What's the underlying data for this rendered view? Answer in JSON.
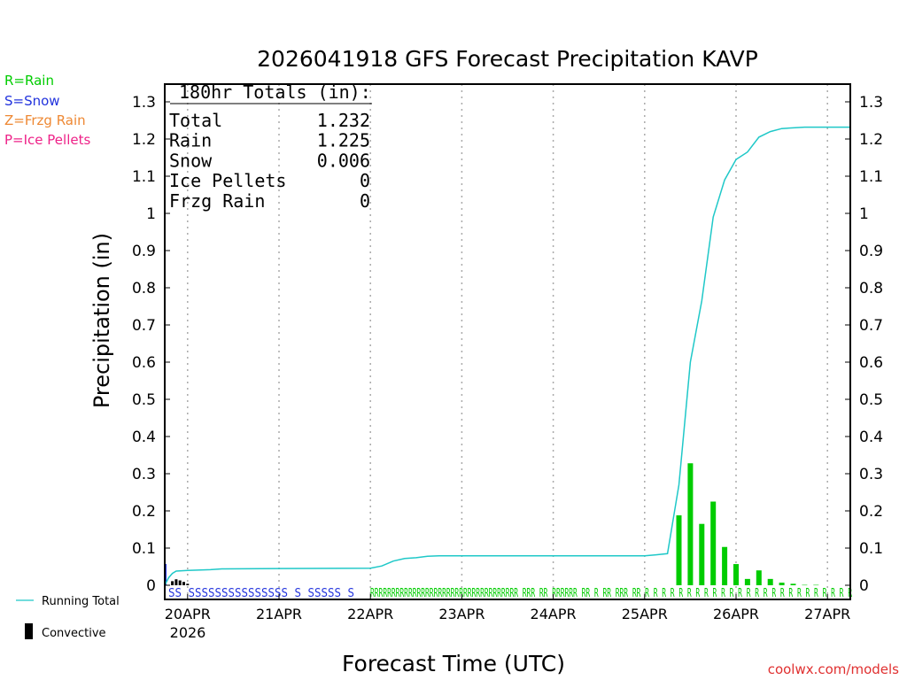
{
  "chart_data": {
    "type": "bar",
    "title": "2026041918 GFS Forecast Precipitation KAVP",
    "xlabel": "Forecast Time (UTC)",
    "ylabel": "Precipitation (in)",
    "ylim": [
      0,
      1.3
    ],
    "y_ticks": [
      "0",
      "0.1",
      "0.2",
      "0.3",
      "0.4",
      "0.5",
      "0.6",
      "0.7",
      "0.8",
      "0.9",
      "1",
      "1.1",
      "1.2",
      "1.3"
    ],
    "x_range_hours": [
      0,
      180
    ],
    "date_ticks": [
      {
        "label": "20APR",
        "hour": 6
      },
      {
        "label": "21APR",
        "hour": 30
      },
      {
        "label": "22APR",
        "hour": 54
      },
      {
        "label": "23APR",
        "hour": 78
      },
      {
        "label": "24APR",
        "hour": 102
      },
      {
        "label": "25APR",
        "hour": 126
      },
      {
        "label": "26APR",
        "hour": 150
      },
      {
        "label": "27APR",
        "hour": 174
      }
    ],
    "year_label": "2026",
    "legend": {
      "rain": "R=Rain",
      "snow": "S=Snow",
      "frzg_rain": "Z=Frzg Rain",
      "ice_pellets": "P=Ice Pellets",
      "running_total": "Running Total",
      "convective": "Convective"
    },
    "totals": {
      "header": "180hr Totals (in):",
      "rows": [
        {
          "label": "Total",
          "value": "1.232"
        },
        {
          "label": "Rain",
          "value": "1.225"
        },
        {
          "label": "Snow",
          "value": "0.006"
        },
        {
          "label": "Ice Pellets",
          "value": "0"
        },
        {
          "label": "Frzg Rain",
          "value": "0"
        }
      ]
    },
    "series": [
      {
        "name": "Running Total",
        "points": [
          [
            0,
            0
          ],
          [
            1,
            0.02
          ],
          [
            2,
            0.032
          ],
          [
            3,
            0.038
          ],
          [
            6,
            0.04
          ],
          [
            12,
            0.042
          ],
          [
            15,
            0.044
          ],
          [
            30,
            0.045
          ],
          [
            54,
            0.046
          ],
          [
            57,
            0.052
          ],
          [
            60,
            0.065
          ],
          [
            63,
            0.072
          ],
          [
            66,
            0.074
          ],
          [
            69,
            0.078
          ],
          [
            72,
            0.079
          ],
          [
            126,
            0.079
          ],
          [
            129,
            0.082
          ],
          [
            132,
            0.085
          ],
          [
            135,
            0.27
          ],
          [
            138,
            0.6
          ],
          [
            141,
            0.765
          ],
          [
            144,
            0.99
          ],
          [
            147,
            1.09
          ],
          [
            150,
            1.145
          ],
          [
            153,
            1.165
          ],
          [
            156,
            1.205
          ],
          [
            159,
            1.22
          ],
          [
            162,
            1.228
          ],
          [
            168,
            1.232
          ],
          [
            180,
            1.232
          ]
        ]
      },
      {
        "name": "Rain (3hr)",
        "points": [
          [
            135,
            0.188
          ],
          [
            138,
            0.328
          ],
          [
            141,
            0.165
          ],
          [
            144,
            0.225
          ],
          [
            147,
            0.103
          ],
          [
            150,
            0.057
          ],
          [
            153,
            0.017
          ],
          [
            156,
            0.04
          ],
          [
            159,
            0.017
          ],
          [
            162,
            0.007
          ],
          [
            165,
            0.004
          ],
          [
            168,
            0.001
          ],
          [
            171,
            0.001
          ]
        ]
      },
      {
        "name": "Convective",
        "points": [
          [
            2,
            0.011
          ],
          [
            3,
            0.016
          ],
          [
            4,
            0.013
          ],
          [
            5,
            0.009
          ],
          [
            6,
            0.004
          ]
        ]
      }
    ],
    "ptype_strip": {
      "snow_text": "SS  SSSSSSSSSSSSSSS  S  SSSSS  S",
      "rain_text": "RRRRRRRRRRRRRRRRRRRRRRRRRRRRRRRRRRR RRR RR  RRRRRR RR  R  RR RRR RR R R R R R R R R R R R R R R R R R R R R R R R R R"
    },
    "credit": "coolwx.com/models",
    "colors": {
      "running_total": "#1fc8c8",
      "rain": "#00cc00",
      "snow": "#2233dd",
      "frzg_rain": "#ee8833",
      "ice_pellets": "#ee2288",
      "convective": "#000000",
      "credit": "#e03030"
    }
  }
}
